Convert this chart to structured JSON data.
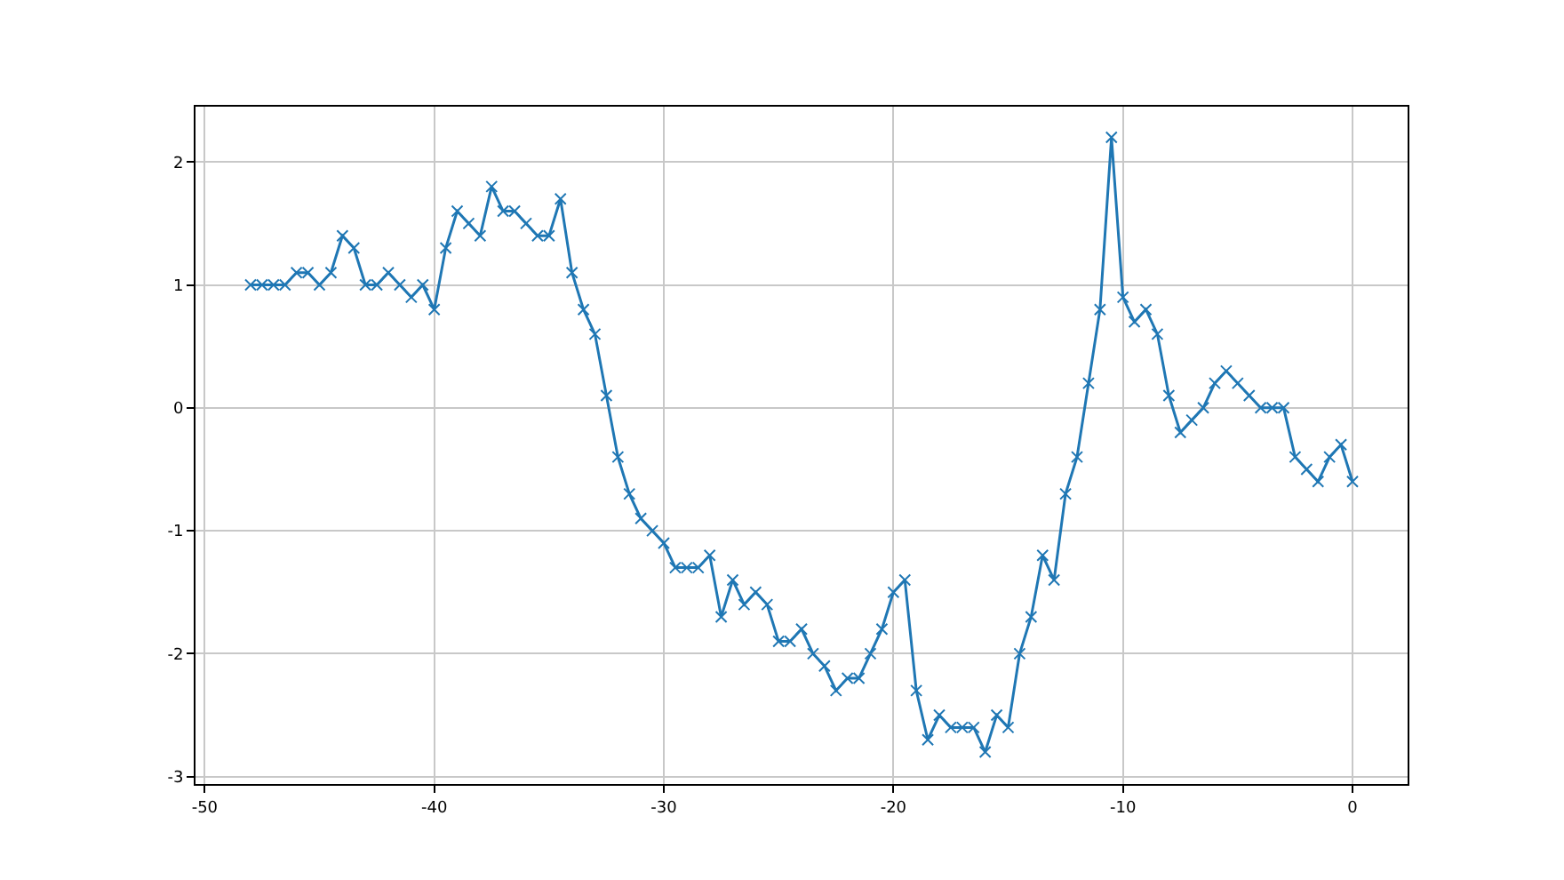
{
  "chart_data": {
    "type": "line",
    "x": [
      -48,
      -47.5,
      -47,
      -46.5,
      -46,
      -45.5,
      -45,
      -44.5,
      -44,
      -43.5,
      -43,
      -42.5,
      -42,
      -41.5,
      -41,
      -40.5,
      -40,
      -39.5,
      -39,
      -38.5,
      -38,
      -37.5,
      -37,
      -36.5,
      -36,
      -35.5,
      -35,
      -34.5,
      -34,
      -33.5,
      -33,
      -32.5,
      -32,
      -31.5,
      -31,
      -30.5,
      -30,
      -29.5,
      -29,
      -28.5,
      -28,
      -27.5,
      -27,
      -26.5,
      -26,
      -25.5,
      -25,
      -24.5,
      -24,
      -23.5,
      -23,
      -22.5,
      -22,
      -21.5,
      -21,
      -20.5,
      -20,
      -19.5,
      -19,
      -18.5,
      -18,
      -17.5,
      -17,
      -16.5,
      -16,
      -15.5,
      -15,
      -14.5,
      -14,
      -13.5,
      -13,
      -12.5,
      -12,
      -11.5,
      -11,
      -10.5,
      -10,
      -9.5,
      -9,
      -8.5,
      -8,
      -7.5,
      -7,
      -6.5,
      -6,
      -5.5,
      -5,
      -4.5,
      -4,
      -3.5,
      -3,
      -2.5,
      -2,
      -1.5,
      -1,
      -0.5,
      0
    ],
    "series": [
      {
        "color": "#1f77b4",
        "values": [
          1.0,
          1.0,
          1.0,
          1.0,
          1.1,
          1.1,
          1.0,
          1.1,
          1.4,
          1.3,
          1.0,
          1.0,
          1.1,
          1.0,
          0.9,
          1.0,
          0.8,
          1.3,
          1.6,
          1.5,
          1.4,
          1.8,
          1.6,
          1.6,
          1.5,
          1.4,
          1.4,
          1.7,
          1.1,
          0.8,
          0.6,
          0.1,
          -0.4,
          -0.7,
          -0.9,
          -1.0,
          -1.1,
          -1.3,
          -1.3,
          -1.3,
          -1.2,
          -1.7,
          -1.4,
          -1.6,
          -1.5,
          -1.6,
          -1.9,
          -1.9,
          -1.8,
          -2.0,
          -2.1,
          -2.3,
          -2.2,
          -2.2,
          -2.0,
          -1.8,
          -1.5,
          -1.4,
          -2.3,
          -2.7,
          -2.5,
          -2.6,
          -2.6,
          -2.6,
          -2.8,
          -2.5,
          -2.6,
          -2.0,
          -1.7,
          -1.2,
          -1.4,
          -0.7,
          -0.4,
          0.2,
          0.8,
          2.2,
          0.9,
          0.7,
          0.8,
          0.6,
          0.1,
          -0.2,
          -0.1,
          0.0,
          0.2,
          0.3,
          0.2,
          0.1,
          0.0,
          0.0,
          0.0,
          -0.4,
          -0.5,
          -0.6,
          -0.4,
          -0.3,
          -0.6
        ]
      }
    ],
    "xlim": [
      -50.4,
      2.4
    ],
    "xticks": [
      -50,
      -40,
      -30,
      -20,
      -10,
      0
    ],
    "ylim": [
      -3.06,
      2.45
    ],
    "yticks": [
      -3,
      -2,
      -1,
      0,
      1,
      2
    ],
    "grid": true,
    "marker": "cross",
    "line_style": "solid"
  }
}
